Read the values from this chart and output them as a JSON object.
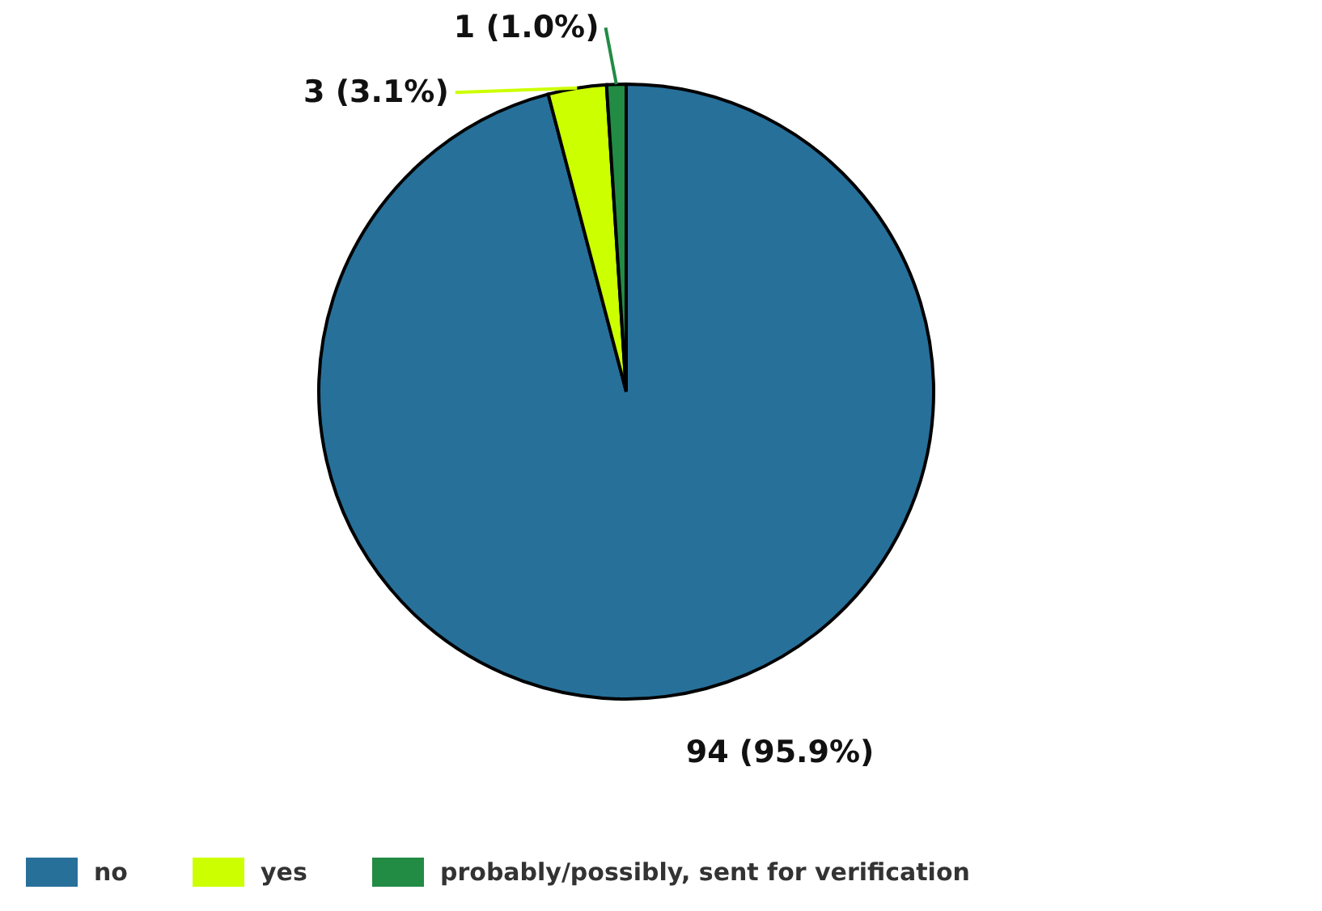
{
  "chart_data": {
    "type": "pie",
    "categories": [
      "no",
      "yes",
      "probably/possibly, sent for verification"
    ],
    "values": [
      94,
      3,
      1
    ],
    "colors": [
      "#27709a",
      "#ccff00",
      "#228b44"
    ],
    "value_labels": [
      "94 (95.9%)",
      "3 (3.1%)",
      "1 (1.0%)"
    ],
    "legend": "bottom"
  }
}
